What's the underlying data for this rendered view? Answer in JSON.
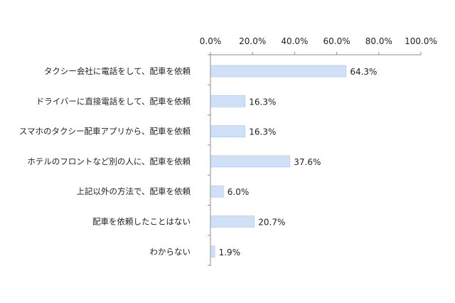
{
  "chart_data": {
    "type": "bar",
    "orientation": "horizontal",
    "categories": [
      "タクシー会社に電話をして、配車を依頼",
      "ドライバーに直接電話をして、配車を依頼",
      "スマホのタクシー配車アプリから、配車を依頼",
      "ホテルのフロントなど別の人に、配車を依頼",
      "上記以外の方法で、配車を依頼",
      "配車を依頼したことはない",
      "わからない"
    ],
    "values": [
      64.3,
      16.3,
      16.3,
      37.6,
      6.0,
      20.7,
      1.9
    ],
    "data_labels": [
      "64.3%",
      "16.3%",
      "16.3%",
      "37.6%",
      "6.0%",
      "20.7%",
      "1.9%"
    ],
    "xlim": [
      0,
      100
    ],
    "x_ticks": [
      0,
      20,
      40,
      60,
      80,
      100
    ],
    "x_tick_labels": [
      "0.0%",
      "20.0%",
      "40.0%",
      "60.0%",
      "80.0%",
      "100.0%"
    ],
    "x_axis_position": "top",
    "grid": false,
    "title": "",
    "xlabel": "",
    "ylabel": "",
    "bar_color": "#cfe0f7",
    "bar_edge_color": "#a9c4ea",
    "axis_color": "#8c8c8c"
  }
}
